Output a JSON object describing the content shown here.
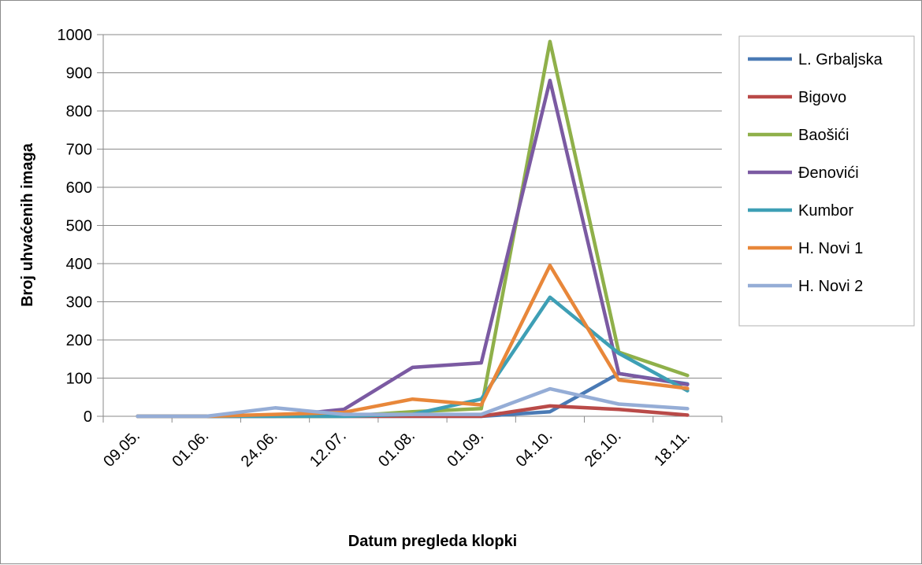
{
  "chart_data": {
    "type": "line",
    "title": "",
    "xlabel": "Datum pregleda klopki",
    "ylabel": "Broj uhvaćenih imaga",
    "ylim": [
      0,
      1000
    ],
    "yticks": [
      "0",
      "100",
      "200",
      "300",
      "400",
      "500",
      "600",
      "700",
      "800",
      "900",
      "1000"
    ],
    "categories": [
      "09.05.",
      "01.06.",
      "24.06.",
      "12.07.",
      "01.08.",
      "01.09.",
      "04.10.",
      "26.10.",
      "18.11."
    ],
    "grid": "horizontal",
    "legend_position": "right",
    "series": [
      {
        "name": "L. Grbaljska",
        "color": "#4a7ab5",
        "values": [
          0,
          0,
          0,
          0,
          0,
          0,
          12,
          112,
          85
        ]
      },
      {
        "name": "Bigovo",
        "color": "#b94a48",
        "values": [
          0,
          0,
          0,
          0,
          0,
          0,
          27,
          18,
          3
        ]
      },
      {
        "name": "Baošići",
        "color": "#8fb04a",
        "values": [
          0,
          0,
          0,
          0,
          12,
          20,
          982,
          168,
          107
        ]
      },
      {
        "name": "Đenovići",
        "color": "#7b5aa2",
        "values": [
          0,
          0,
          0,
          18,
          128,
          140,
          880,
          112,
          83
        ]
      },
      {
        "name": "Kumbor",
        "color": "#3e9fb5",
        "values": [
          0,
          0,
          0,
          0,
          5,
          45,
          312,
          165,
          67
        ]
      },
      {
        "name": "H. Novi 1",
        "color": "#e8873a",
        "values": [
          0,
          0,
          5,
          10,
          45,
          30,
          395,
          95,
          73
        ]
      },
      {
        "name": "H. Novi 2",
        "color": "#95add6",
        "values": [
          0,
          0,
          22,
          5,
          5,
          5,
          72,
          32,
          20
        ]
      }
    ]
  }
}
